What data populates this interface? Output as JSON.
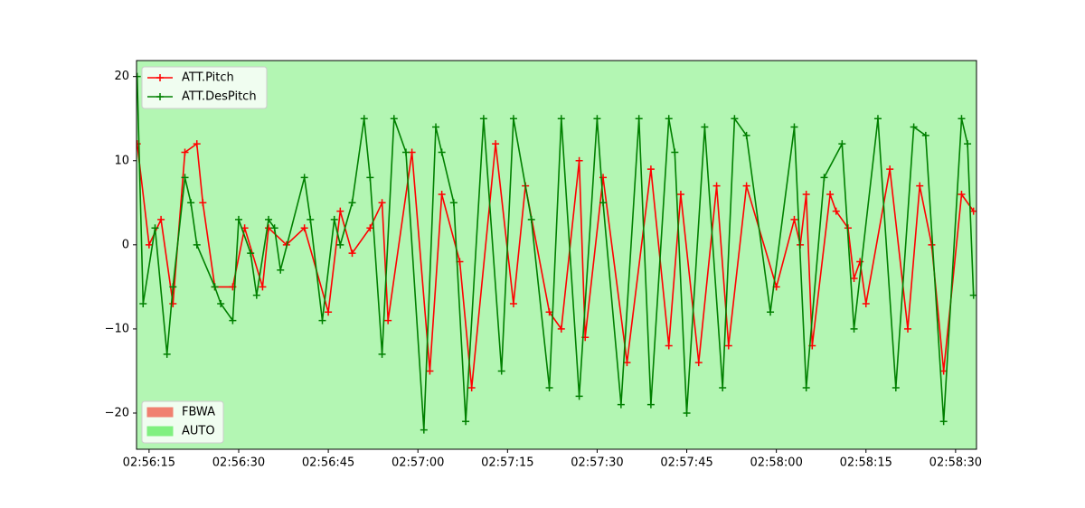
{
  "chart_data": {
    "type": "line",
    "xlim": [
      "02:56:12.9",
      "02:58:33.5"
    ],
    "xticks": [
      "02:56:15",
      "02:56:30",
      "02:56:45",
      "02:57:00",
      "02:57:15",
      "02:57:30",
      "02:57:45",
      "02:58:00",
      "02:58:15",
      "02:58:30"
    ],
    "ylim": [
      -24.3,
      21.9
    ],
    "yticks": [
      -20,
      -10,
      0,
      10,
      20
    ],
    "legend": "upper left",
    "series": [
      {
        "name": "ATT.Pitch",
        "color": "#ff0000",
        "x": [
          "02:56:13",
          "02:56:15",
          "02:56:17",
          "02:56:19",
          "02:56:21",
          "02:56:23",
          "02:56:24",
          "02:56:26",
          "02:56:29",
          "02:56:31",
          "02:56:34",
          "02:56:35",
          "02:56:38",
          "02:56:41",
          "02:56:45",
          "02:56:47",
          "02:56:49",
          "02:56:52",
          "02:56:54",
          "02:56:55",
          "02:56:59",
          "02:57:02",
          "02:57:04",
          "02:57:07",
          "02:57:09",
          "02:57:13",
          "02:57:16",
          "02:57:18",
          "02:57:22",
          "02:57:24",
          "02:57:27",
          "02:57:28",
          "02:57:31",
          "02:57:35",
          "02:57:39",
          "02:57:42",
          "02:57:44",
          "02:57:47",
          "02:57:50",
          "02:57:52",
          "02:57:55",
          "02:58:00",
          "02:58:03",
          "02:58:04",
          "02:58:05",
          "02:58:06",
          "02:58:09",
          "02:58:10",
          "02:58:12",
          "02:58:13",
          "02:58:14",
          "02:58:15",
          "02:58:19",
          "02:58:22",
          "02:58:24",
          "02:58:26",
          "02:58:28",
          "02:58:31",
          "02:58:33"
        ],
        "values": [
          12,
          0,
          3,
          -7,
          11,
          12,
          5,
          -5,
          -5,
          2,
          -5,
          2,
          0,
          2,
          -8,
          4,
          -1,
          2,
          5,
          -9,
          11,
          -15,
          6,
          -2,
          -17,
          12,
          -7,
          7,
          -8,
          -10,
          10,
          -11,
          8,
          -14,
          9,
          -12,
          6,
          -14,
          7,
          -12,
          7,
          -5,
          3,
          0,
          6,
          -12,
          6,
          4,
          2,
          -4,
          -2,
          -7,
          9,
          -10,
          7,
          0,
          -15,
          6,
          4
        ]
      },
      {
        "name": "ATT.DesPitch",
        "color": "#008000",
        "x": [
          "02:56:13",
          "02:56:14",
          "02:56:16",
          "02:56:18",
          "02:56:19",
          "02:56:21",
          "02:56:22",
          "02:56:23",
          "02:56:26",
          "02:56:27",
          "02:56:29",
          "02:56:30",
          "02:56:32",
          "02:56:33",
          "02:56:35",
          "02:56:36",
          "02:56:37",
          "02:56:41",
          "02:56:42",
          "02:56:44",
          "02:56:46",
          "02:56:47",
          "02:56:49",
          "02:56:51",
          "02:56:52",
          "02:56:54",
          "02:56:56",
          "02:56:58",
          "02:57:01",
          "02:57:03",
          "02:57:04",
          "02:57:06",
          "02:57:08",
          "02:57:11",
          "02:57:14",
          "02:57:16",
          "02:57:19",
          "02:57:22",
          "02:57:24",
          "02:57:27",
          "02:57:30",
          "02:57:31",
          "02:57:34",
          "02:57:37",
          "02:57:39",
          "02:57:42",
          "02:57:43",
          "02:57:45",
          "02:57:48",
          "02:57:51",
          "02:57:53",
          "02:57:55",
          "02:57:59",
          "02:58:03",
          "02:58:05",
          "02:58:08",
          "02:58:11",
          "02:58:13",
          "02:58:17",
          "02:58:20",
          "02:58:23",
          "02:58:25",
          "02:58:28",
          "02:58:31",
          "02:58:32",
          "02:58:33"
        ],
        "values": [
          20,
          -7,
          2,
          -13,
          -5,
          8,
          5,
          0,
          -5,
          -7,
          -9,
          3,
          -1,
          -6,
          3,
          2,
          -3,
          8,
          3,
          -9,
          3,
          0,
          5,
          15,
          8,
          -13,
          15,
          11,
          -22,
          14,
          11,
          5,
          -21,
          15,
          -15,
          15,
          3,
          -17,
          15,
          -18,
          15,
          5,
          -19,
          15,
          -19,
          15,
          11,
          -20,
          14,
          -17,
          15,
          13,
          -8,
          14,
          -17,
          8,
          12,
          -10,
          15,
          -17,
          14,
          13,
          -21,
          15,
          12,
          -6
        ]
      }
    ],
    "modes": [
      {
        "name": "FBWA",
        "color": "#f08070"
      },
      {
        "name": "AUTO",
        "color": "#80f080"
      }
    ],
    "modes_legend": "lower left",
    "mode_spans": [
      {
        "mode": 1,
        "from": "02:56:12.9",
        "to": "02:58:33.5"
      }
    ]
  }
}
